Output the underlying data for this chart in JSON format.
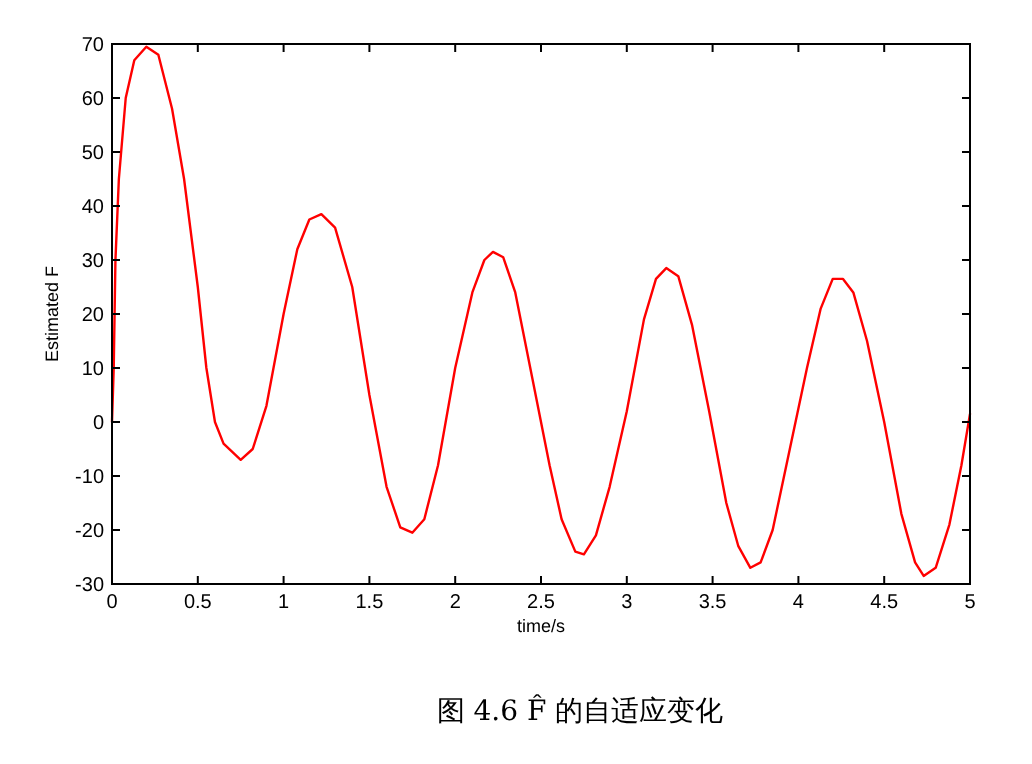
{
  "chart_data": {
    "type": "line",
    "title": "图 4.6 F̂ 的自适应变化",
    "xlabel": "time/s",
    "ylabel": "Estimated F",
    "xlim": [
      0,
      5
    ],
    "ylim": [
      -30,
      70
    ],
    "xticks": [
      0,
      0.5,
      1,
      1.5,
      2,
      2.5,
      3,
      3.5,
      4,
      4.5,
      5
    ],
    "yticks": [
      -30,
      -20,
      -10,
      0,
      10,
      20,
      30,
      40,
      50,
      60,
      70
    ],
    "grid": false,
    "series": [
      {
        "color": "#ff0000",
        "x": [
          0,
          0.01,
          0.02,
          0.04,
          0.08,
          0.13,
          0.2,
          0.27,
          0.35,
          0.42,
          0.5,
          0.55,
          0.6,
          0.65,
          0.75,
          0.82,
          0.9,
          1.0,
          1.08,
          1.15,
          1.22,
          1.3,
          1.4,
          1.5,
          1.6,
          1.68,
          1.75,
          1.82,
          1.9,
          2.0,
          2.1,
          2.17,
          2.22,
          2.28,
          2.35,
          2.45,
          2.55,
          2.62,
          2.7,
          2.75,
          2.82,
          2.9,
          3.0,
          3.1,
          3.17,
          3.23,
          3.3,
          3.38,
          3.48,
          3.58,
          3.65,
          3.72,
          3.78,
          3.85,
          3.95,
          4.05,
          4.13,
          4.2,
          4.26,
          4.32,
          4.4,
          4.5,
          4.6,
          4.68,
          4.73,
          4.8,
          4.88,
          4.95,
          5.0
        ],
        "values": [
          0,
          10,
          30,
          45,
          60,
          67,
          69.5,
          68,
          58,
          45,
          25,
          10,
          0,
          -4,
          -7,
          -5,
          3,
          20,
          32,
          37.5,
          38.5,
          36,
          25,
          5,
          -12,
          -19.5,
          -20.5,
          -18,
          -8,
          10,
          24,
          30,
          31.5,
          30.5,
          24,
          8,
          -8,
          -18,
          -24,
          -24.5,
          -21,
          -12,
          2,
          19,
          26.5,
          28.5,
          27,
          18,
          2,
          -15,
          -23,
          -27,
          -26,
          -20,
          -5,
          10,
          21,
          26.5,
          26.5,
          24,
          15,
          0,
          -17,
          -26,
          -28.5,
          -27,
          -19,
          -8,
          1.5
        ]
      }
    ]
  }
}
